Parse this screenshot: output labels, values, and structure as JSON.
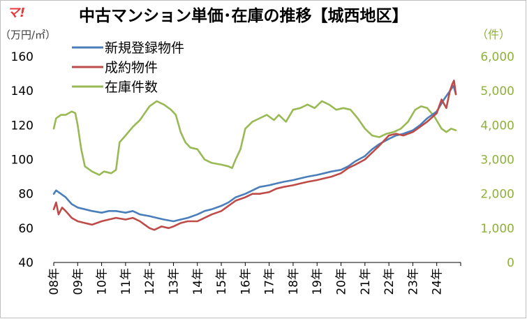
{
  "logo": "マ!",
  "colors": {
    "listed": "#4a7ebb",
    "sold": "#be4b48",
    "inventory": "#98b954",
    "right_axis": "#8fb03a"
  },
  "chart_data": {
    "type": "line",
    "title": "中古マンション単価･在庫の推移【城西地区】",
    "ylabel_left": "（万円/㎡）",
    "ylabel_right": "（件）",
    "y_left": {
      "min": 40,
      "max": 160,
      "step": 20,
      "tick_labels": [
        "40",
        "60",
        "80",
        "100",
        "120",
        "140",
        "160"
      ]
    },
    "y_right": {
      "min": 0,
      "max": 6000,
      "step": 1000,
      "tick_labels": [
        "0",
        "1,000",
        "2,000",
        "3,000",
        "4,000",
        "5,000",
        "6,000"
      ]
    },
    "x_labels": [
      "08年",
      "09年",
      "10年",
      "11年",
      "12年",
      "13年",
      "14年",
      "15年",
      "16年",
      "17年",
      "18年",
      "19年",
      "20年",
      "21年",
      "22年",
      "23年",
      "24年"
    ],
    "x_range": [
      2008.0,
      2025.0
    ],
    "series": [
      {
        "name": "新規登録物件",
        "axis": "left",
        "color": "#4a7ebb",
        "points": [
          [
            2008.0,
            80
          ],
          [
            2008.1,
            82
          ],
          [
            2008.3,
            80
          ],
          [
            2008.5,
            78
          ],
          [
            2008.75,
            74
          ],
          [
            2009.0,
            72
          ],
          [
            2009.3,
            71
          ],
          [
            2009.6,
            70
          ],
          [
            2010.0,
            69
          ],
          [
            2010.3,
            70
          ],
          [
            2010.6,
            70
          ],
          [
            2011.0,
            69
          ],
          [
            2011.3,
            70
          ],
          [
            2011.6,
            68
          ],
          [
            2012.0,
            67
          ],
          [
            2012.3,
            66
          ],
          [
            2012.6,
            65
          ],
          [
            2013.0,
            64
          ],
          [
            2013.3,
            65
          ],
          [
            2013.6,
            66
          ],
          [
            2014.0,
            68
          ],
          [
            2014.3,
            70
          ],
          [
            2014.6,
            71
          ],
          [
            2015.0,
            73
          ],
          [
            2015.3,
            75
          ],
          [
            2015.6,
            78
          ],
          [
            2016.0,
            80
          ],
          [
            2016.3,
            82
          ],
          [
            2016.6,
            84
          ],
          [
            2017.0,
            85
          ],
          [
            2017.3,
            86
          ],
          [
            2017.6,
            87
          ],
          [
            2018.0,
            88
          ],
          [
            2018.3,
            89
          ],
          [
            2018.6,
            90
          ],
          [
            2019.0,
            91
          ],
          [
            2019.3,
            92
          ],
          [
            2019.6,
            93
          ],
          [
            2020.0,
            94
          ],
          [
            2020.3,
            96
          ],
          [
            2020.6,
            99
          ],
          [
            2021.0,
            102
          ],
          [
            2021.3,
            106
          ],
          [
            2021.6,
            109
          ],
          [
            2022.0,
            112
          ],
          [
            2022.3,
            114
          ],
          [
            2022.6,
            115
          ],
          [
            2023.0,
            117
          ],
          [
            2023.3,
            120
          ],
          [
            2023.6,
            124
          ],
          [
            2024.0,
            128
          ],
          [
            2024.3,
            135
          ],
          [
            2024.55,
            140
          ],
          [
            2024.7,
            143
          ],
          [
            2024.8,
            138
          ]
        ]
      },
      {
        "name": "成約物件",
        "axis": "left",
        "color": "#be4b48",
        "points": [
          [
            2008.0,
            71
          ],
          [
            2008.1,
            75
          ],
          [
            2008.2,
            68
          ],
          [
            2008.35,
            72
          ],
          [
            2008.5,
            70
          ],
          [
            2008.75,
            66
          ],
          [
            2009.0,
            64
          ],
          [
            2009.3,
            63
          ],
          [
            2009.6,
            62
          ],
          [
            2010.0,
            64
          ],
          [
            2010.3,
            65
          ],
          [
            2010.6,
            66
          ],
          [
            2011.0,
            65
          ],
          [
            2011.3,
            66
          ],
          [
            2011.6,
            64
          ],
          [
            2011.8,
            62
          ],
          [
            2012.0,
            60
          ],
          [
            2012.2,
            59
          ],
          [
            2012.5,
            61
          ],
          [
            2012.8,
            60
          ],
          [
            2013.0,
            61
          ],
          [
            2013.3,
            63
          ],
          [
            2013.6,
            64
          ],
          [
            2014.0,
            64
          ],
          [
            2014.3,
            66
          ],
          [
            2014.6,
            68
          ],
          [
            2015.0,
            70
          ],
          [
            2015.3,
            73
          ],
          [
            2015.6,
            76
          ],
          [
            2016.0,
            78
          ],
          [
            2016.3,
            80
          ],
          [
            2016.6,
            80
          ],
          [
            2017.0,
            81
          ],
          [
            2017.3,
            83
          ],
          [
            2017.6,
            84
          ],
          [
            2018.0,
            85
          ],
          [
            2018.3,
            86
          ],
          [
            2018.6,
            87
          ],
          [
            2019.0,
            88
          ],
          [
            2019.3,
            89
          ],
          [
            2019.6,
            90
          ],
          [
            2020.0,
            92
          ],
          [
            2020.3,
            95
          ],
          [
            2020.6,
            97
          ],
          [
            2021.0,
            100
          ],
          [
            2021.3,
            104
          ],
          [
            2021.6,
            108
          ],
          [
            2022.0,
            114
          ],
          [
            2022.3,
            115
          ],
          [
            2022.6,
            114
          ],
          [
            2023.0,
            116
          ],
          [
            2023.3,
            119
          ],
          [
            2023.6,
            122
          ],
          [
            2024.0,
            127
          ],
          [
            2024.2,
            135
          ],
          [
            2024.4,
            130
          ],
          [
            2024.55,
            140
          ],
          [
            2024.65,
            144
          ],
          [
            2024.72,
            146
          ],
          [
            2024.8,
            138
          ]
        ]
      },
      {
        "name": "在庫件数",
        "axis": "right",
        "color": "#98b954",
        "points": [
          [
            2008.0,
            3900
          ],
          [
            2008.1,
            4200
          ],
          [
            2008.3,
            4300
          ],
          [
            2008.5,
            4300
          ],
          [
            2008.75,
            4400
          ],
          [
            2008.9,
            4350
          ],
          [
            2009.0,
            4000
          ],
          [
            2009.15,
            3300
          ],
          [
            2009.3,
            2800
          ],
          [
            2009.6,
            2650
          ],
          [
            2009.9,
            2550
          ],
          [
            2010.1,
            2650
          ],
          [
            2010.4,
            2600
          ],
          [
            2010.6,
            2700
          ],
          [
            2010.75,
            3500
          ],
          [
            2011.0,
            3700
          ],
          [
            2011.3,
            3950
          ],
          [
            2011.6,
            4150
          ],
          [
            2012.0,
            4550
          ],
          [
            2012.3,
            4700
          ],
          [
            2012.6,
            4600
          ],
          [
            2012.9,
            4450
          ],
          [
            2013.1,
            4300
          ],
          [
            2013.3,
            3800
          ],
          [
            2013.5,
            3500
          ],
          [
            2013.7,
            3350
          ],
          [
            2014.0,
            3300
          ],
          [
            2014.3,
            3000
          ],
          [
            2014.6,
            2900
          ],
          [
            2015.0,
            2850
          ],
          [
            2015.3,
            2800
          ],
          [
            2015.45,
            2750
          ],
          [
            2015.6,
            3000
          ],
          [
            2015.8,
            3300
          ],
          [
            2016.0,
            3900
          ],
          [
            2016.3,
            4100
          ],
          [
            2016.6,
            4200
          ],
          [
            2016.9,
            4300
          ],
          [
            2017.2,
            4150
          ],
          [
            2017.4,
            4300
          ],
          [
            2017.7,
            4100
          ],
          [
            2018.0,
            4450
          ],
          [
            2018.3,
            4500
          ],
          [
            2018.6,
            4600
          ],
          [
            2018.9,
            4500
          ],
          [
            2019.2,
            4700
          ],
          [
            2019.5,
            4600
          ],
          [
            2019.8,
            4450
          ],
          [
            2020.1,
            4500
          ],
          [
            2020.4,
            4450
          ],
          [
            2020.7,
            4200
          ],
          [
            2021.0,
            3900
          ],
          [
            2021.3,
            3700
          ],
          [
            2021.6,
            3650
          ],
          [
            2021.9,
            3750
          ],
          [
            2022.2,
            3800
          ],
          [
            2022.5,
            3900
          ],
          [
            2022.8,
            4100
          ],
          [
            2023.1,
            4450
          ],
          [
            2023.35,
            4550
          ],
          [
            2023.6,
            4500
          ],
          [
            2023.9,
            4250
          ],
          [
            2024.2,
            3900
          ],
          [
            2024.4,
            3800
          ],
          [
            2024.6,
            3900
          ],
          [
            2024.8,
            3850
          ]
        ]
      }
    ],
    "legend_position": "top-left",
    "grid": false
  }
}
